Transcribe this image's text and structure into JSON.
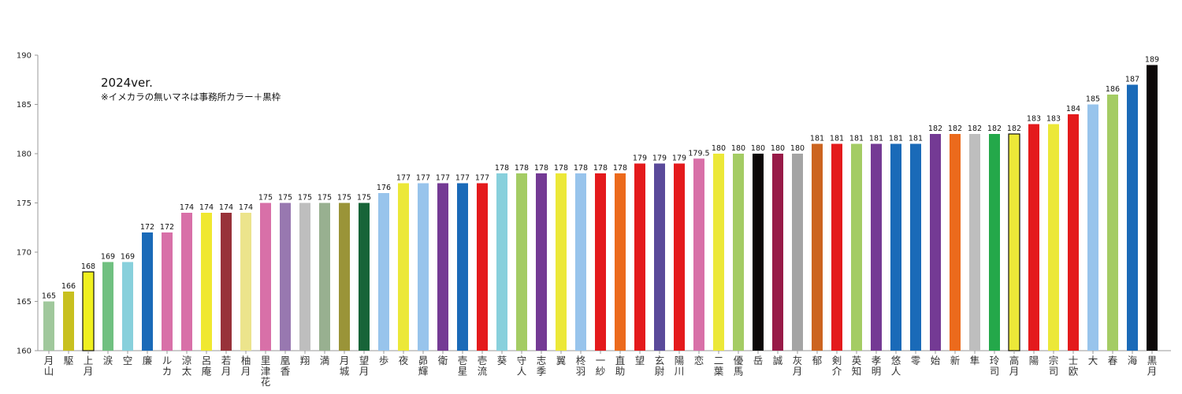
{
  "annotation": {
    "version": "2024ver.",
    "note": "※イメカラの無いマネは事務所カラー＋黒枠"
  },
  "chart_data": {
    "type": "bar",
    "ylim": [
      160,
      190
    ],
    "yticks": [
      160,
      165,
      170,
      175,
      180,
      185,
      190
    ],
    "grid": false,
    "legend": "none",
    "bars": [
      {
        "label": "月山",
        "value": 165,
        "display": "165",
        "color": "#a0c89c",
        "outlined": false
      },
      {
        "label": "駆",
        "value": 166,
        "display": "166",
        "color": "#c8c020",
        "outlined": false
      },
      {
        "label": "上月",
        "value": 168,
        "display": "168",
        "color": "#f0f020",
        "outlined": true
      },
      {
        "label": "涙",
        "value": 169,
        "display": "169",
        "color": "#70c080",
        "outlined": false
      },
      {
        "label": "空",
        "value": 169,
        "display": "169",
        "color": "#88d0dc",
        "outlined": false
      },
      {
        "label": "廉",
        "value": 172,
        "display": "172",
        "color": "#1a6ab8",
        "outlined": false
      },
      {
        "label": "ルカ",
        "value": 172,
        "display": "172",
        "color": "#d870a8",
        "outlined": false
      },
      {
        "label": "涼太",
        "value": 174,
        "display": "174",
        "color": "#d870a8",
        "outlined": false
      },
      {
        "label": "呂庵",
        "value": 174,
        "display": "174",
        "color": "#f0e830",
        "outlined": false
      },
      {
        "label": "若月",
        "value": 174,
        "display": "174",
        "color": "#98323a",
        "outlined": false
      },
      {
        "label": "柚月",
        "value": 174,
        "display": "174",
        "color": "#ece48c",
        "outlined": false
      },
      {
        "label": "里津花",
        "value": 175,
        "display": "175",
        "color": "#d870a8",
        "outlined": false
      },
      {
        "label": "凰香",
        "value": 175,
        "display": "175",
        "color": "#9878b0",
        "outlined": false
      },
      {
        "label": "翔",
        "value": 175,
        "display": "175",
        "color": "#bebebe",
        "outlined": false
      },
      {
        "label": "満",
        "value": 175,
        "display": "175",
        "color": "#98b090",
        "outlined": false
      },
      {
        "label": "月城",
        "value": 175,
        "display": "175",
        "color": "#9a9438",
        "outlined": false
      },
      {
        "label": "望月",
        "value": 175,
        "display": "175",
        "color": "#176438",
        "outlined": false
      },
      {
        "label": "歩",
        "value": 176,
        "display": "176",
        "color": "#98c4ec",
        "outlined": false
      },
      {
        "label": "夜",
        "value": 177,
        "display": "177",
        "color": "#ece838",
        "outlined": false
      },
      {
        "label": "昴輝",
        "value": 177,
        "display": "177",
        "color": "#98c4ec",
        "outlined": false
      },
      {
        "label": "衛",
        "value": 177,
        "display": "177",
        "color": "#743a94",
        "outlined": false
      },
      {
        "label": "壱星",
        "value": 177,
        "display": "177",
        "color": "#1a6ab8",
        "outlined": false
      },
      {
        "label": "壱流",
        "value": 177,
        "display": "177",
        "color": "#e41a1c",
        "outlined": false
      },
      {
        "label": "葵",
        "value": 178,
        "display": "178",
        "color": "#88d0dc",
        "outlined": false
      },
      {
        "label": "守人",
        "value": 178,
        "display": "178",
        "color": "#a4cc64",
        "outlined": false
      },
      {
        "label": "志季",
        "value": 178,
        "display": "178",
        "color": "#743a94",
        "outlined": false
      },
      {
        "label": "翼",
        "value": 178,
        "display": "178",
        "color": "#ece838",
        "outlined": false
      },
      {
        "label": "柊羽",
        "value": 178,
        "display": "178",
        "color": "#98c4ec",
        "outlined": false
      },
      {
        "label": "一紗",
        "value": 178,
        "display": "178",
        "color": "#e41a1c",
        "outlined": false
      },
      {
        "label": "直助",
        "value": 178,
        "display": "178",
        "color": "#ec6a1c",
        "outlined": false
      },
      {
        "label": "望",
        "value": 179,
        "display": "179",
        "color": "#e41a1c",
        "outlined": false
      },
      {
        "label": "玄尉",
        "value": 179,
        "display": "179",
        "color": "#5a4a9a",
        "outlined": false
      },
      {
        "label": "陽川",
        "value": 179,
        "display": "179",
        "color": "#e41a1c",
        "outlined": false
      },
      {
        "label": "恋",
        "value": 179.5,
        "display": "179.5",
        "color": "#d870a8",
        "outlined": false
      },
      {
        "label": "二葉",
        "value": 180,
        "display": "180",
        "color": "#ece838",
        "outlined": false
      },
      {
        "label": "優馬",
        "value": 180,
        "display": "180",
        "color": "#a4cc64",
        "outlined": false
      },
      {
        "label": "岳",
        "value": 180,
        "display": "180",
        "color": "#0c0808",
        "outlined": false
      },
      {
        "label": "誠",
        "value": 180,
        "display": "180",
        "color": "#981a48",
        "outlined": false
      },
      {
        "label": "灰月",
        "value": 180,
        "display": "180",
        "color": "#a4a4a4",
        "outlined": false
      },
      {
        "label": "郁",
        "value": 181,
        "display": "181",
        "color": "#cc6420",
        "outlined": false
      },
      {
        "label": "剣介",
        "value": 181,
        "display": "181",
        "color": "#e41a1c",
        "outlined": false
      },
      {
        "label": "英知",
        "value": 181,
        "display": "181",
        "color": "#a4cc64",
        "outlined": false
      },
      {
        "label": "孝明",
        "value": 181,
        "display": "181",
        "color": "#743a94",
        "outlined": false
      },
      {
        "label": "悠人",
        "value": 181,
        "display": "181",
        "color": "#1a6ab8",
        "outlined": false
      },
      {
        "label": "零",
        "value": 181,
        "display": "181",
        "color": "#1a6ab8",
        "outlined": false
      },
      {
        "label": "始",
        "value": 182,
        "display": "182",
        "color": "#743a94",
        "outlined": false
      },
      {
        "label": "新",
        "value": 182,
        "display": "182",
        "color": "#ec6a1c",
        "outlined": false
      },
      {
        "label": "隼",
        "value": 182,
        "display": "182",
        "color": "#bebebe",
        "outlined": false
      },
      {
        "label": "玲司",
        "value": 182,
        "display": "182",
        "color": "#24a84a",
        "outlined": false
      },
      {
        "label": "高月",
        "value": 182,
        "display": "182",
        "color": "#ece838",
        "outlined": true
      },
      {
        "label": "陽",
        "value": 183,
        "display": "183",
        "color": "#e41a1c",
        "outlined": false
      },
      {
        "label": "宗司",
        "value": 183,
        "display": "183",
        "color": "#ece838",
        "outlined": false
      },
      {
        "label": "士欧",
        "value": 184,
        "display": "184",
        "color": "#e41a1c",
        "outlined": false
      },
      {
        "label": "大",
        "value": 185,
        "display": "185",
        "color": "#98c4ec",
        "outlined": false
      },
      {
        "label": "春",
        "value": 186,
        "display": "186",
        "color": "#a4cc64",
        "outlined": false
      },
      {
        "label": "海",
        "value": 187,
        "display": "187",
        "color": "#1a6ab8",
        "outlined": false
      },
      {
        "label": "黒月",
        "value": 189,
        "display": "189",
        "color": "#0c0808",
        "outlined": false
      }
    ]
  }
}
